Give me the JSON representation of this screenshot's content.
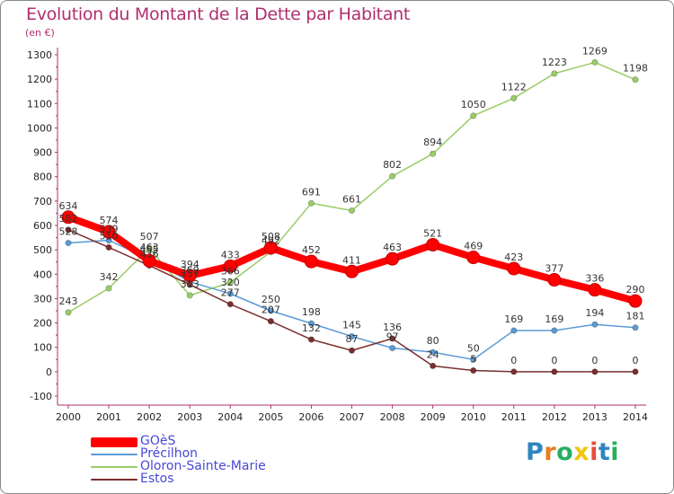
{
  "chart_data": {
    "type": "line",
    "title": "Evolution du Montant de la Dette par Habitant",
    "unit_label": "(en €)",
    "xlabel": "",
    "ylabel": "",
    "ylim": [
      -100,
      1300
    ],
    "ytick_step": 100,
    "x": [
      2000,
      2001,
      2002,
      2003,
      2004,
      2005,
      2006,
      2007,
      2008,
      2009,
      2010,
      2011,
      2012,
      2013,
      2014
    ],
    "grid": false,
    "legend_position": "bottom-left",
    "series": [
      {
        "name": "GOèS",
        "color": "#ff0000",
        "values": [
          634,
          574,
          455,
          394,
          433,
          508,
          452,
          411,
          463,
          521,
          469,
          423,
          377,
          336,
          290
        ]
      },
      {
        "name": "Précilhon",
        "color": "#5b9bd5",
        "values": [
          528,
          539,
          463,
          369,
          320,
          250,
          198,
          145,
          97,
          80,
          50,
          169,
          169,
          194,
          181
        ]
      },
      {
        "name": "Oloron-Sainte-Marie",
        "color": "#99cc66",
        "values": [
          243,
          342,
          507,
          313,
          366,
          492,
          691,
          661,
          802,
          894,
          1050,
          1122,
          1223,
          1269,
          1198
        ]
      },
      {
        "name": "Estos",
        "color": "#7a2e2e",
        "values": [
          582,
          510,
          436,
          357,
          277,
          207,
          132,
          87,
          136,
          24,
          5,
          0,
          0,
          0,
          0
        ]
      }
    ]
  },
  "legend": {
    "items": [
      {
        "label": "GOèS",
        "color": "#ff0000"
      },
      {
        "label": "Précilhon",
        "color": "#5b9bd5"
      },
      {
        "label": "Oloron-Sainte-Marie",
        "color": "#99cc66"
      },
      {
        "label": "Estos",
        "color": "#7a2e2e"
      }
    ]
  },
  "logo": {
    "text": "Proxiti",
    "letter_colors": [
      "#2e86c1",
      "#e67e22",
      "#27ae60",
      "#f1c40f",
      "#e74c3c",
      "#2e86c1",
      "#27ae60"
    ]
  }
}
